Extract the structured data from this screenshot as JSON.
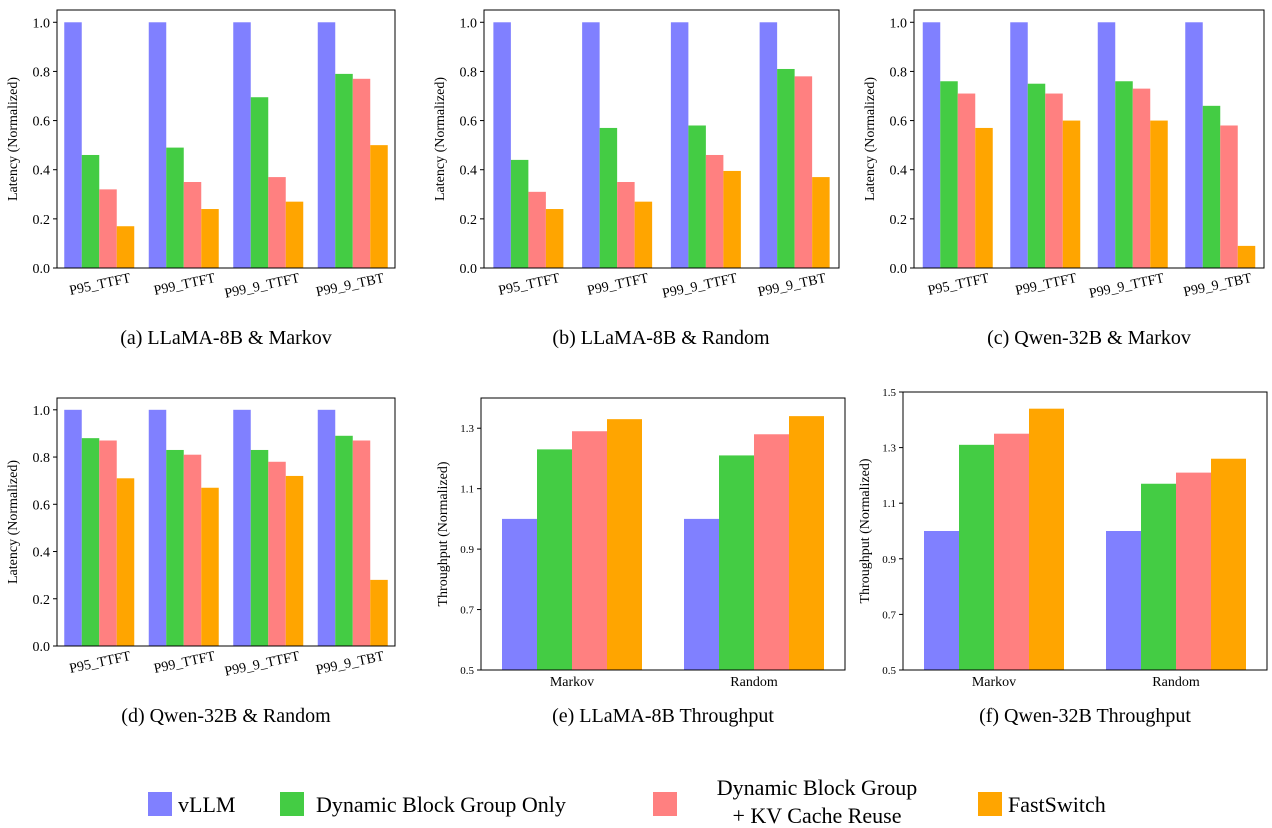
{
  "legend": [
    {
      "name": "vLLM",
      "color": "#8080ff"
    },
    {
      "name": "Dynamic Block Group Only",
      "color": "#44cc44"
    },
    {
      "name": "Dynamic Block Group\n+ KV Cache Reuse",
      "color": "#ff8080"
    },
    {
      "name": "FastSwitch",
      "color": "#ffa500"
    }
  ],
  "chart_data": [
    {
      "type": "bar",
      "caption": "(a) LLaMA-8B & Markov",
      "ylabel": "Latency (Normalized)",
      "ylim": [
        0,
        1.05
      ],
      "yticks": [
        0.0,
        0.2,
        0.4,
        0.6,
        0.8,
        1.0
      ],
      "categories": [
        "P95_TTFT",
        "P99_TTFT",
        "P99_9_TTFT",
        "P99_9_TBT"
      ],
      "series": [
        {
          "name": "vLLM",
          "values": [
            1.0,
            1.0,
            1.0,
            1.0
          ]
        },
        {
          "name": "Dynamic Block Group Only",
          "values": [
            0.46,
            0.49,
            0.695,
            0.79
          ]
        },
        {
          "name": "Dynamic Block Group + KV Cache Reuse",
          "values": [
            0.32,
            0.35,
            0.37,
            0.77
          ]
        },
        {
          "name": "FastSwitch",
          "values": [
            0.17,
            0.24,
            0.27,
            0.5
          ]
        }
      ]
    },
    {
      "type": "bar",
      "caption": "(b) LLaMA-8B & Random",
      "ylabel": "Latency (Normalized)",
      "ylim": [
        0,
        1.05
      ],
      "yticks": [
        0.0,
        0.2,
        0.4,
        0.6,
        0.8,
        1.0
      ],
      "categories": [
        "P95_TTFT",
        "P99_TTFT",
        "P99_9_TTFT",
        "P99_9_TBT"
      ],
      "series": [
        {
          "name": "vLLM",
          "values": [
            1.0,
            1.0,
            1.0,
            1.0
          ]
        },
        {
          "name": "Dynamic Block Group Only",
          "values": [
            0.44,
            0.57,
            0.58,
            0.81
          ]
        },
        {
          "name": "Dynamic Block Group + KV Cache Reuse",
          "values": [
            0.31,
            0.35,
            0.46,
            0.78
          ]
        },
        {
          "name": "FastSwitch",
          "values": [
            0.24,
            0.27,
            0.395,
            0.37
          ]
        }
      ]
    },
    {
      "type": "bar",
      "caption": "(c) Qwen-32B & Markov",
      "ylabel": "Latency (Normalized)",
      "ylim": [
        0,
        1.05
      ],
      "yticks": [
        0.0,
        0.2,
        0.4,
        0.6,
        0.8,
        1.0
      ],
      "categories": [
        "P95_TTFT",
        "P99_TTFT",
        "P99_9_TTFT",
        "P99_9_TBT"
      ],
      "series": [
        {
          "name": "vLLM",
          "values": [
            1.0,
            1.0,
            1.0,
            1.0
          ]
        },
        {
          "name": "Dynamic Block Group Only",
          "values": [
            0.76,
            0.75,
            0.76,
            0.66
          ]
        },
        {
          "name": "Dynamic Block Group + KV Cache Reuse",
          "values": [
            0.71,
            0.71,
            0.73,
            0.58
          ]
        },
        {
          "name": "FastSwitch",
          "values": [
            0.57,
            0.6,
            0.6,
            0.09
          ]
        }
      ]
    },
    {
      "type": "bar",
      "caption": "(d) Qwen-32B & Random",
      "ylabel": "Latency (Normalized)",
      "ylim": [
        0,
        1.05
      ],
      "yticks": [
        0.0,
        0.2,
        0.4,
        0.6,
        0.8,
        1.0
      ],
      "categories": [
        "P95_TTFT",
        "P99_TTFT",
        "P99_9_TTFT",
        "P99_9_TBT"
      ],
      "series": [
        {
          "name": "vLLM",
          "values": [
            1.0,
            1.0,
            1.0,
            1.0
          ]
        },
        {
          "name": "Dynamic Block Group Only",
          "values": [
            0.88,
            0.83,
            0.83,
            0.89
          ]
        },
        {
          "name": "Dynamic Block Group + KV Cache Reuse",
          "values": [
            0.87,
            0.81,
            0.78,
            0.87
          ]
        },
        {
          "name": "FastSwitch",
          "values": [
            0.71,
            0.67,
            0.72,
            0.28
          ]
        }
      ]
    },
    {
      "type": "bar",
      "caption": "(e) LLaMA-8B Throughput",
      "ylabel": "Throughput (Normalized)",
      "ylim": [
        0.5,
        1.4
      ],
      "yticks": [
        0.5,
        0.7,
        0.9,
        1.1,
        1.3
      ],
      "categories": [
        "Markov",
        "Random"
      ],
      "series": [
        {
          "name": "vLLM",
          "values": [
            1.0,
            1.0
          ]
        },
        {
          "name": "Dynamic Block Group Only",
          "values": [
            1.23,
            1.21
          ]
        },
        {
          "name": "Dynamic Block Group + KV Cache Reuse",
          "values": [
            1.29,
            1.28
          ]
        },
        {
          "name": "FastSwitch",
          "values": [
            1.33,
            1.34
          ]
        }
      ]
    },
    {
      "type": "bar",
      "caption": "(f) Qwen-32B Throughput",
      "ylabel": "Throughput (Normalized)",
      "ylim": [
        0.5,
        1.5
      ],
      "yticks": [
        0.5,
        0.7,
        0.9,
        1.1,
        1.3,
        1.5
      ],
      "categories": [
        "Markov",
        "Random"
      ],
      "series": [
        {
          "name": "vLLM",
          "values": [
            1.0,
            1.0
          ]
        },
        {
          "name": "Dynamic Block Group Only",
          "values": [
            1.31,
            1.17
          ]
        },
        {
          "name": "Dynamic Block Group + KV Cache Reuse",
          "values": [
            1.35,
            1.21
          ]
        },
        {
          "name": "FastSwitch",
          "values": [
            1.44,
            1.26
          ]
        }
      ]
    }
  ]
}
